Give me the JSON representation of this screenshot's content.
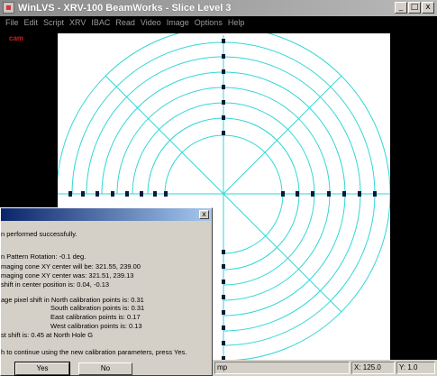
{
  "window": {
    "title": "WinLVS - XRV-100 BeamWorks - Slice Level 3"
  },
  "window_buttons": {
    "minimize": "_",
    "maximize": "□",
    "close": "x"
  },
  "menu": [
    "File",
    "Edit",
    "Script",
    "XRV",
    "IBAC",
    "Read",
    "Video",
    "Image",
    "Options",
    "Help"
  ],
  "overlay_label": "cam",
  "colors": {
    "circle": "#33d6d6",
    "marker": "#0b1a3a",
    "canvas_bg": "#ffffff",
    "title_bar": "#0a246a",
    "face": "#d4d0c8"
  },
  "dialog": {
    "close": "x",
    "lines": [
      "n performed successfully.",
      "n Pattern Rotation: -0.1 deg.",
      "maging cone XY center will be: 321.55, 239.00",
      "maging cone XY center was:       321.51, 239.13",
      "shift in center position is:          0.04,  -0.13",
      "age pixel shift in North calibration points is:  0.31",
      "South calibration points is:   0.31",
      "East calibration points is:    0.17",
      "West calibration points is:   0.13",
      "st shift is:     0.45 at North Hole G",
      "h to continue using the new calibration parameters, press Yes."
    ],
    "yes": "Yes",
    "no": "No"
  },
  "status": {
    "message": "mp",
    "x_label": "X:",
    "x_value": "125.0",
    "y_label": "Y:",
    "y_value": "1.0"
  }
}
